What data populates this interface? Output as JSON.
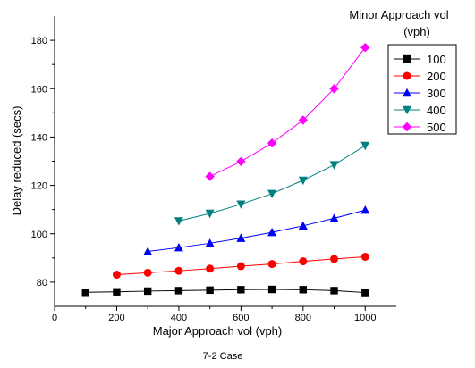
{
  "chart_data": {
    "type": "line",
    "title": "",
    "xlabel": "Major Approach vol (vph)",
    "ylabel": "Delay reduced (secs)",
    "xlim": [
      0,
      1100
    ],
    "ylim": [
      70,
      190
    ],
    "x_ticks": [
      0,
      200,
      400,
      600,
      800,
      1000
    ],
    "y_ticks": [
      80,
      100,
      120,
      140,
      160,
      180
    ],
    "grid": false,
    "legend": {
      "title_line1": "Minor Approach vol",
      "title_line2": "(vph)",
      "placement": "right"
    },
    "caption": "7-2 Case",
    "series": [
      {
        "name": "100",
        "color": "#000000",
        "marker": "square",
        "x": [
          100,
          200,
          300,
          400,
          500,
          600,
          700,
          800,
          900,
          1000
        ],
        "y": [
          75.8,
          76.0,
          76.3,
          76.5,
          76.7,
          76.9,
          77.0,
          76.9,
          76.5,
          75.7
        ]
      },
      {
        "name": "200",
        "color": "#ff0000",
        "marker": "circle",
        "x": [
          200,
          300,
          400,
          500,
          600,
          700,
          800,
          900,
          1000
        ],
        "y": [
          83.1,
          83.9,
          84.7,
          85.6,
          86.6,
          87.5,
          88.6,
          89.6,
          90.5
        ]
      },
      {
        "name": "300",
        "color": "#0000ff",
        "marker": "triangle-up",
        "x": [
          300,
          400,
          500,
          600,
          700,
          800,
          900,
          1000
        ],
        "y": [
          92.7,
          94.3,
          96.1,
          98.2,
          100.6,
          103.3,
          106.4,
          109.8
        ]
      },
      {
        "name": "400",
        "color": "#008080",
        "marker": "triangle-down",
        "x": [
          400,
          500,
          600,
          700,
          800,
          900,
          1000
        ],
        "y": [
          105.3,
          108.4,
          112.2,
          116.6,
          122.1,
          128.5,
          136.5
        ]
      },
      {
        "name": "500",
        "color": "#ff00ff",
        "marker": "diamond",
        "x": [
          500,
          600,
          700,
          800,
          900,
          1000
        ],
        "y": [
          123.7,
          129.9,
          137.5,
          147.0,
          160.0,
          177.0
        ]
      }
    ]
  }
}
